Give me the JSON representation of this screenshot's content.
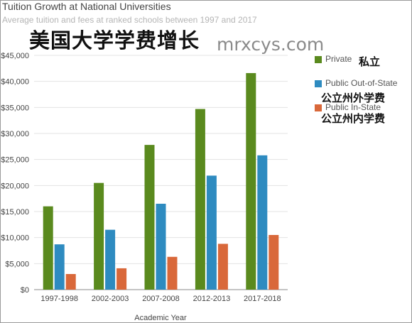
{
  "chart_data": {
    "type": "bar",
    "title": "Tuition Growth at National Universities",
    "subtitle": "Average tuition and fees at ranked schools between 1997 and 2017",
    "xlabel": "Academic Year",
    "ylabel": "",
    "categories": [
      "1997-1998",
      "2002-2003",
      "2007-2008",
      "2012-2013",
      "2017-2018"
    ],
    "series": [
      {
        "name": "Private",
        "color": "#5a8a1e",
        "values": [
          16000,
          20500,
          27800,
          34700,
          41600
        ]
      },
      {
        "name": "Public Out-of-State",
        "color": "#2e8bc0",
        "values": [
          8700,
          11500,
          16500,
          21900,
          25800
        ]
      },
      {
        "name": "Public In-State",
        "color": "#d9683a",
        "values": [
          3000,
          4100,
          6300,
          8800,
          10500
        ]
      }
    ],
    "ylim": [
      0,
      45000
    ],
    "yticks": [
      "$0",
      "$5,000",
      "$10,000",
      "$15,000",
      "$20,000",
      "$25,000",
      "$30,000",
      "$35,000",
      "$40,000",
      "$45,000"
    ],
    "grid": true,
    "legend_position": "right"
  },
  "overlay": {
    "heading_cn": "美国大学学费增长",
    "watermark": "mrxcys.com"
  },
  "legend_cn": [
    "私立",
    "公立州外学费",
    "公立州内学费"
  ]
}
